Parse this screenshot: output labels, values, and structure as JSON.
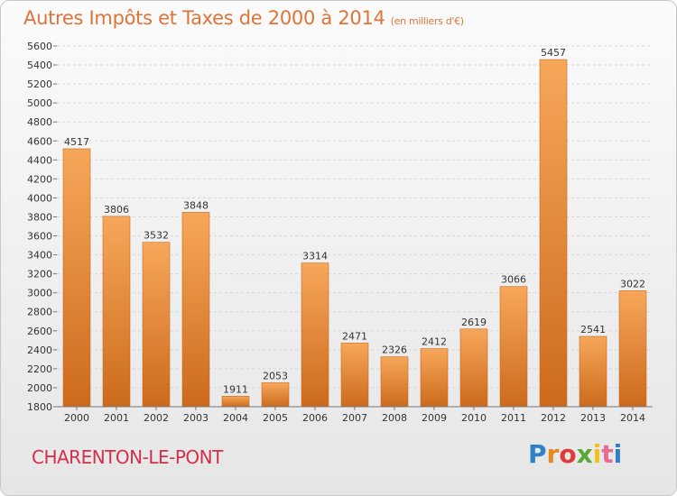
{
  "title": "Autres Impôts et Taxes de 2000 à 2014",
  "subtitle": "(en milliers d'€)",
  "footer": {
    "city": "CHARENTON-LE-PONT",
    "logo": "Proxiti"
  },
  "colors": {
    "bar_light": "#f7a75a",
    "bar_dark": "#cc6a1c",
    "title": "#e07438",
    "city": "#d3304a"
  },
  "chart_data": {
    "type": "bar",
    "title": "Autres Impôts et Taxes de 2000 à 2014",
    "subtitle": "(en milliers d'€)",
    "categories": [
      "2000",
      "2001",
      "2002",
      "2003",
      "2004",
      "2005",
      "2006",
      "2007",
      "2008",
      "2009",
      "2010",
      "2011",
      "2012",
      "2013",
      "2014"
    ],
    "values": [
      4517,
      3806,
      3532,
      3848,
      1911,
      2053,
      3314,
      2471,
      2326,
      2412,
      2619,
      3066,
      5457,
      2541,
      3022
    ],
    "ylim": [
      1800,
      5600
    ],
    "yticks": [
      1800,
      2000,
      2200,
      2400,
      2600,
      2800,
      3000,
      3200,
      3400,
      3600,
      3800,
      4000,
      4200,
      4400,
      4600,
      4800,
      5000,
      5200,
      5400,
      5600
    ],
    "grid": true,
    "data_labels": true
  }
}
